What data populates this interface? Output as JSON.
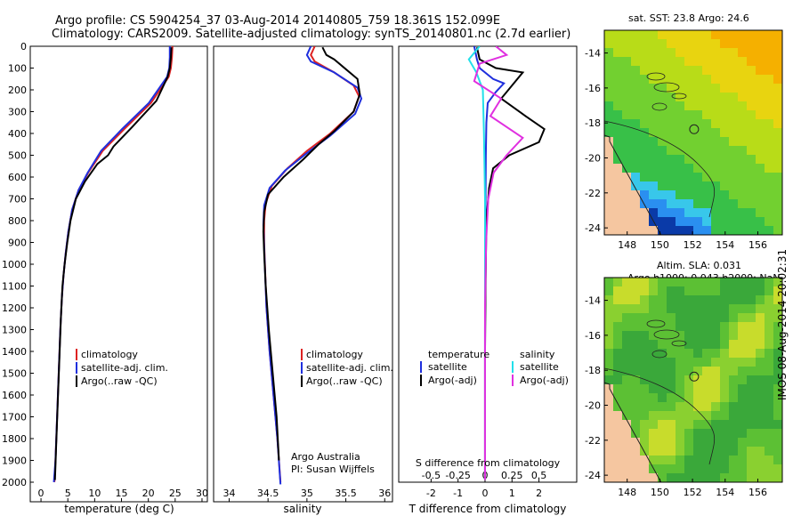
{
  "header": {
    "line1": "Argo profile: CS 5904254_37 03-Aug-2014 20140805_759 18.361S 152.099E",
    "line2": "Climatology: CARS2009. Satellite-adjusted climatology: synTS_20140801.nc (2.7d earlier)"
  },
  "colors": {
    "climatology": "#dd2222",
    "satellite": "#1f2fdd",
    "argo": "#000000",
    "s_satellite": "#22e0ea",
    "s_argo": "#e030e0",
    "land": "#f5c6a0"
  },
  "chart_data": [
    {
      "type": "line",
      "id": "temperature",
      "xlabel": "temperature (deg C)",
      "ylabel": "",
      "xlim": [
        -2,
        31
      ],
      "ylim": [
        0,
        2100
      ],
      "yreverse": true,
      "xticks": [
        0,
        5,
        10,
        15,
        20,
        25,
        30
      ],
      "yticks": [
        0,
        100,
        200,
        300,
        400,
        500,
        600,
        700,
        800,
        900,
        1000,
        1100,
        1200,
        1300,
        1400,
        1500,
        1600,
        1700,
        1800,
        1900,
        2000
      ],
      "legend": [
        "climatology",
        "satellite-adj. clim.",
        "Argo(..raw -QC)"
      ],
      "series": [
        {
          "name": "climatology",
          "color_key": "climatology",
          "points": [
            [
              24.5,
              0
            ],
            [
              24.4,
              50
            ],
            [
              24.2,
              100
            ],
            [
              23.8,
              140
            ],
            [
              20.5,
              260
            ],
            [
              15.5,
              380
            ],
            [
              11.5,
              480
            ],
            [
              8.8,
              580
            ],
            [
              7.0,
              660
            ],
            [
              5.8,
              750
            ],
            [
              5.1,
              850
            ],
            [
              4.6,
              950
            ],
            [
              4.2,
              1050
            ],
            [
              3.9,
              1150
            ],
            [
              3.6,
              1300
            ],
            [
              3.3,
              1500
            ],
            [
              3.0,
              1700
            ],
            [
              2.7,
              1900
            ],
            [
              2.5,
              2000
            ]
          ]
        },
        {
          "name": "satellite-adj. clim.",
          "color_key": "satellite",
          "points": [
            [
              24.0,
              0
            ],
            [
              24.0,
              50
            ],
            [
              23.9,
              100
            ],
            [
              23.5,
              140
            ],
            [
              20.1,
              260
            ],
            [
              15.1,
              380
            ],
            [
              11.2,
              480
            ],
            [
              8.7,
              580
            ],
            [
              7.0,
              660
            ],
            [
              5.8,
              750
            ],
            [
              5.1,
              850
            ],
            [
              4.6,
              950
            ],
            [
              4.2,
              1050
            ],
            [
              3.9,
              1150
            ],
            [
              3.6,
              1300
            ],
            [
              3.3,
              1500
            ],
            [
              3.0,
              1700
            ],
            [
              2.7,
              1900
            ],
            [
              2.4,
              2000
            ]
          ]
        },
        {
          "name": "Argo(..raw -QC)",
          "color_key": "argo",
          "points": [
            [
              24.3,
              5
            ],
            [
              24.2,
              50
            ],
            [
              24.0,
              100
            ],
            [
              23.6,
              140
            ],
            [
              21.5,
              250
            ],
            [
              17.0,
              370
            ],
            [
              13.5,
              460
            ],
            [
              12.5,
              500
            ],
            [
              10.5,
              540
            ],
            [
              8.2,
              620
            ],
            [
              6.5,
              700
            ],
            [
              5.5,
              800
            ],
            [
              4.9,
              900
            ],
            [
              4.4,
              1000
            ],
            [
              4.0,
              1100
            ],
            [
              3.7,
              1250
            ],
            [
              3.4,
              1450
            ],
            [
              3.1,
              1650
            ],
            [
              2.8,
              1850
            ],
            [
              2.6,
              1990
            ]
          ]
        }
      ]
    },
    {
      "type": "line",
      "id": "salinity",
      "xlabel": "salinity",
      "ylabel": "",
      "xlim": [
        33.8,
        36.1
      ],
      "ylim": [
        0,
        2100
      ],
      "yreverse": true,
      "xticks": [
        34,
        34.5,
        35,
        35.5,
        36
      ],
      "legend": [
        "climatology",
        "satellite-adj. clim.",
        "Argo(..raw -QC)"
      ],
      "credits": [
        "Argo Australia",
        "PI: Susan Wijffels"
      ],
      "series": [
        {
          "name": "climatology",
          "color_key": "climatology",
          "points": [
            [
              35.1,
              0
            ],
            [
              35.05,
              40
            ],
            [
              35.1,
              70
            ],
            [
              35.35,
              120
            ],
            [
              35.6,
              180
            ],
            [
              35.67,
              230
            ],
            [
              35.6,
              300
            ],
            [
              35.3,
              400
            ],
            [
              35.0,
              480
            ],
            [
              34.75,
              560
            ],
            [
              34.55,
              640
            ],
            [
              34.47,
              720
            ],
            [
              34.45,
              800
            ],
            [
              34.45,
              900
            ],
            [
              34.46,
              1000
            ],
            [
              34.48,
              1200
            ],
            [
              34.52,
              1400
            ],
            [
              34.57,
              1600
            ],
            [
              34.62,
              1800
            ],
            [
              34.66,
              2000
            ]
          ]
        },
        {
          "name": "satellite-adj. clim.",
          "color_key": "satellite",
          "points": [
            [
              35.05,
              0
            ],
            [
              35.0,
              40
            ],
            [
              35.05,
              70
            ],
            [
              35.35,
              120
            ],
            [
              35.65,
              190
            ],
            [
              35.7,
              240
            ],
            [
              35.62,
              310
            ],
            [
              35.3,
              410
            ],
            [
              35.0,
              490
            ],
            [
              34.72,
              570
            ],
            [
              34.52,
              650
            ],
            [
              34.45,
              730
            ],
            [
              34.44,
              820
            ],
            [
              34.45,
              920
            ],
            [
              34.46,
              1020
            ],
            [
              34.48,
              1200
            ],
            [
              34.52,
              1400
            ],
            [
              34.57,
              1600
            ],
            [
              34.62,
              1800
            ],
            [
              34.66,
              2010
            ]
          ]
        },
        {
          "name": "Argo(..raw -QC)",
          "color_key": "argo",
          "points": [
            [
              35.2,
              5
            ],
            [
              35.25,
              40
            ],
            [
              35.35,
              60
            ],
            [
              35.45,
              90
            ],
            [
              35.65,
              150
            ],
            [
              35.68,
              220
            ],
            [
              35.6,
              300
            ],
            [
              35.35,
              390
            ],
            [
              35.15,
              450
            ],
            [
              34.95,
              520
            ],
            [
              34.7,
              600
            ],
            [
              34.5,
              680
            ],
            [
              34.45,
              760
            ],
            [
              34.44,
              850
            ],
            [
              34.45,
              950
            ],
            [
              34.47,
              1100
            ],
            [
              34.51,
              1300
            ],
            [
              34.56,
              1500
            ],
            [
              34.61,
              1700
            ],
            [
              34.64,
              1900
            ]
          ]
        }
      ]
    },
    {
      "type": "line",
      "id": "difference",
      "title": "S difference from climatology",
      "xlabel": "T difference from climatology",
      "s_xlim": [
        -0.8,
        0.85
      ],
      "t_xlim": [
        -3.2,
        3.4
      ],
      "ylim": [
        0,
        2100
      ],
      "yreverse": true,
      "s_ticks": [
        -0.5,
        -0.25,
        0,
        0.25,
        0.5
      ],
      "t_ticks": [
        -2,
        -1,
        0,
        1,
        2
      ],
      "legend_t_title": "temperature",
      "legend_s_title": "salinity",
      "legend_t": [
        "satellite",
        "Argo(-adj)"
      ],
      "legend_s": [
        "satellite",
        "Argo(-adj)"
      ],
      "series": [
        {
          "name": "temperature satellite",
          "axis": "t",
          "color_key": "satellite",
          "points": [
            [
              -0.4,
              0
            ],
            [
              -0.3,
              60
            ],
            [
              -0.2,
              100
            ],
            [
              0.3,
              150
            ],
            [
              0.7,
              170
            ],
            [
              0.4,
              210
            ],
            [
              0.1,
              260
            ],
            [
              0.05,
              350
            ],
            [
              0.03,
              500
            ],
            [
              0.02,
              700
            ],
            [
              0.01,
              1000
            ],
            [
              0.0,
              1300
            ],
            [
              0.0,
              1600
            ],
            [
              0.0,
              1900
            ],
            [
              0.0,
              1990
            ]
          ]
        },
        {
          "name": "temperature Argo(-adj)",
          "axis": "t",
          "color_key": "argo",
          "points": [
            [
              -0.3,
              5
            ],
            [
              -0.2,
              60
            ],
            [
              0.4,
              100
            ],
            [
              1.4,
              120
            ],
            [
              1.0,
              180
            ],
            [
              0.6,
              240
            ],
            [
              1.5,
              320
            ],
            [
              2.2,
              380
            ],
            [
              2.0,
              440
            ],
            [
              0.9,
              500
            ],
            [
              0.3,
              560
            ],
            [
              0.15,
              650
            ],
            [
              0.05,
              800
            ],
            [
              0.02,
              1100
            ],
            [
              0.0,
              1400
            ],
            [
              0.0,
              1700
            ],
            [
              0.0,
              1990
            ]
          ]
        },
        {
          "name": "salinity satellite",
          "axis": "s",
          "color_key": "s_satellite",
          "points": [
            [
              -0.05,
              0
            ],
            [
              -0.15,
              60
            ],
            [
              -0.08,
              120
            ],
            [
              -0.02,
              200
            ],
            [
              -0.01,
              400
            ],
            [
              0.0,
              700
            ],
            [
              0.0,
              1200
            ],
            [
              0.0,
              1700
            ],
            [
              0.0,
              1990
            ]
          ]
        },
        {
          "name": "salinity Argo(-adj)",
          "axis": "s",
          "color_key": "s_argo",
          "points": [
            [
              0.1,
              0
            ],
            [
              0.2,
              40
            ],
            [
              -0.05,
              80
            ],
            [
              -0.1,
              160
            ],
            [
              0.15,
              240
            ],
            [
              0.05,
              320
            ],
            [
              0.35,
              420
            ],
            [
              0.2,
              500
            ],
            [
              0.08,
              580
            ],
            [
              0.03,
              700
            ],
            [
              0.01,
              900
            ],
            [
              0.0,
              1200
            ],
            [
              0.0,
              1600
            ],
            [
              0.0,
              1990
            ]
          ]
        }
      ]
    },
    {
      "type": "heatmap",
      "id": "sst-map",
      "title": "sat. SST: 23.8 Argo: 24.6",
      "xticks": [
        148,
        150,
        152,
        154,
        156
      ],
      "yticks": [
        -14,
        -16,
        -18,
        -20,
        -22,
        -24
      ],
      "xlim": [
        146.6,
        157.5
      ],
      "ylim": [
        -24.4,
        -12.7
      ]
    },
    {
      "type": "heatmap",
      "id": "sla-map",
      "title_line1": "Altim. SLA: 0.031",
      "title_line2": "Argo h1000: 0.043 h2000: NaN",
      "xticks": [
        148,
        150,
        152,
        154,
        156
      ],
      "yticks": [
        -14,
        -16,
        -18,
        -20,
        -22,
        -24
      ],
      "xlim": [
        146.6,
        157.5
      ],
      "ylim": [
        -24.4,
        -12.7
      ]
    }
  ],
  "footer": {
    "timestamp": "IMOS 08-Aug-2014 20:02:31"
  }
}
